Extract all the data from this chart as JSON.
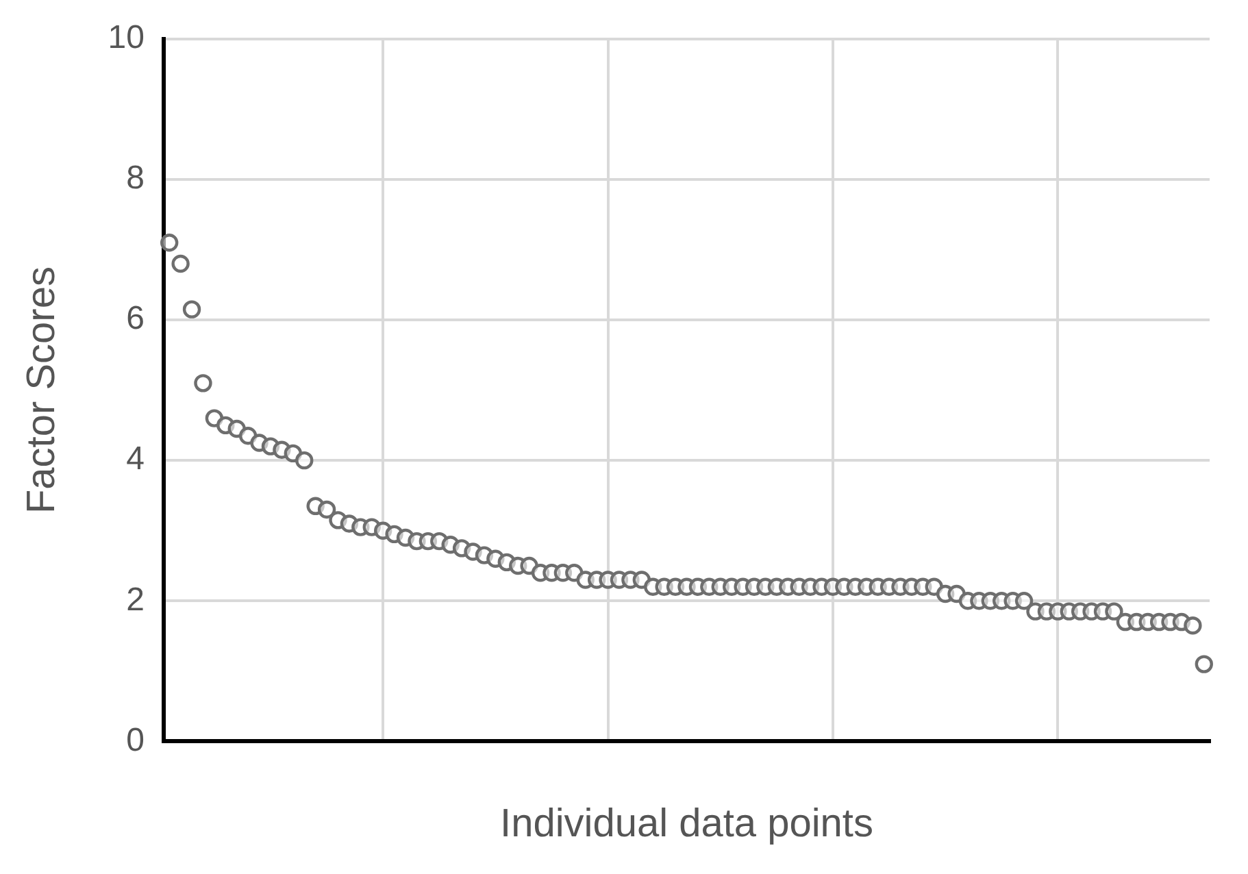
{
  "chart_data": {
    "type": "scatter",
    "xlabel": "Individual data points",
    "ylabel": "Factor Scores",
    "categories": [
      null,
      null,
      null,
      null,
      null,
      null,
      null,
      null,
      null,
      null,
      null,
      null,
      null,
      null,
      null,
      null,
      null,
      null,
      null,
      null,
      null,
      null,
      null,
      null,
      null,
      null,
      null,
      null,
      null,
      null,
      null,
      null,
      null,
      null,
      null,
      null,
      null,
      null,
      null,
      null,
      null,
      null,
      null,
      null,
      null,
      null,
      null,
      null,
      null,
      null,
      null,
      null,
      null,
      null,
      null,
      null,
      null,
      null,
      null,
      null,
      null,
      null,
      null,
      null,
      null,
      null,
      null,
      null,
      null,
      null,
      null,
      null,
      null,
      null,
      null,
      null,
      null,
      null,
      null,
      null,
      null,
      null,
      null,
      null,
      null,
      null,
      null,
      null,
      null,
      null,
      null,
      null,
      null
    ],
    "series": [
      {
        "color": "#6e6e6e",
        "values": [
          7.1,
          6.8,
          6.15,
          5.1,
          4.6,
          4.5,
          4.45,
          4.35,
          4.25,
          4.2,
          4.15,
          4.1,
          4.0,
          3.35,
          3.3,
          3.15,
          3.1,
          3.05,
          3.05,
          3.0,
          2.95,
          2.9,
          2.85,
          2.85,
          2.85,
          2.8,
          2.75,
          2.7,
          2.65,
          2.6,
          2.55,
          2.5,
          2.5,
          2.4,
          2.4,
          2.4,
          2.4,
          2.3,
          2.3,
          2.3,
          2.3,
          2.3,
          2.3,
          2.2,
          2.2,
          2.2,
          2.2,
          2.2,
          2.2,
          2.2,
          2.2,
          2.2,
          2.2,
          2.2,
          2.2,
          2.2,
          2.2,
          2.2,
          2.2,
          2.2,
          2.2,
          2.2,
          2.2,
          2.2,
          2.2,
          2.2,
          2.2,
          2.2,
          2.2,
          2.1,
          2.1,
          2.0,
          2.0,
          2.0,
          2.0,
          2.0,
          2.0,
          1.85,
          1.85,
          1.85,
          1.85,
          1.85,
          1.85,
          1.85,
          1.85,
          1.7,
          1.7,
          1.7,
          1.7,
          1.7,
          1.7,
          1.65,
          1.1
        ]
      }
    ],
    "ylim": [
      0,
      10
    ],
    "yticks": [
      0,
      2,
      4,
      6,
      8,
      10
    ],
    "grid": true,
    "marker": "circle",
    "tick_labels": "y"
  }
}
